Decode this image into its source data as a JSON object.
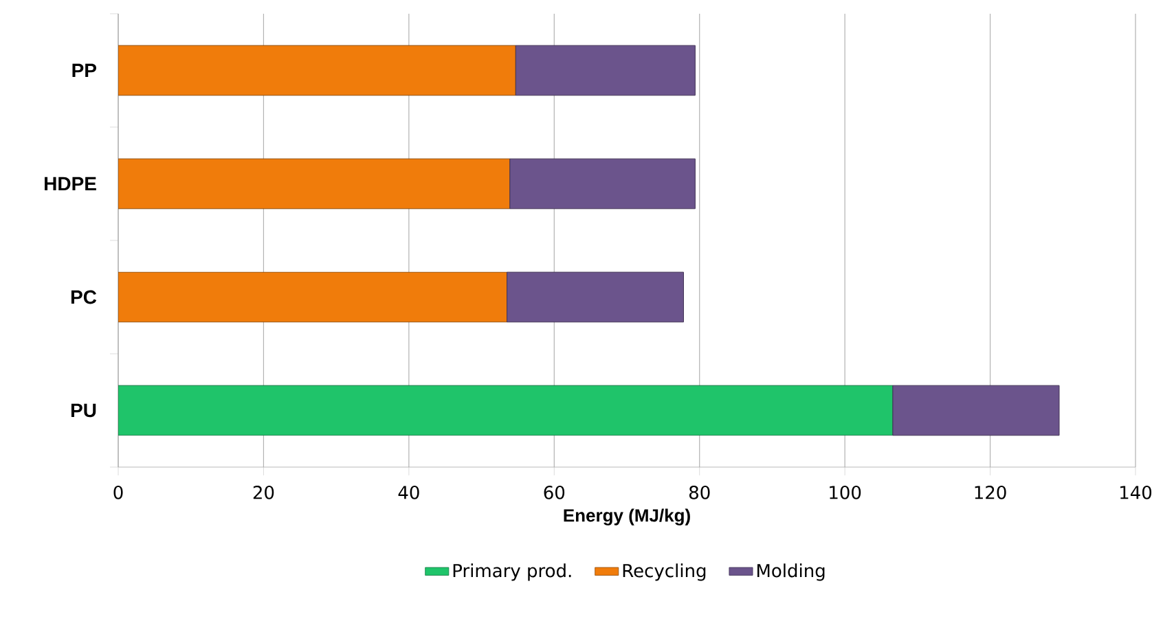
{
  "chart_data": {
    "type": "bar",
    "orientation": "horizontal",
    "stacked": true,
    "xlabel": "Energy (MJ/kg)",
    "categories": [
      "PP",
      "HDPE",
      "PC",
      "PU"
    ],
    "series": [
      {
        "name": "Primary prod.",
        "color": "#1fc46a",
        "values": [
          null,
          null,
          null,
          106.6
        ]
      },
      {
        "name": "Recycling",
        "color": "#f07c0b",
        "values": [
          54.7,
          53.9,
          53.5,
          null
        ]
      },
      {
        "name": "Molding",
        "color": "#6b548c",
        "values": [
          24.7,
          25.5,
          24.3,
          22.9
        ]
      }
    ],
    "xlim": [
      0,
      140
    ],
    "xticks": [
      0,
      20,
      40,
      60,
      80,
      100,
      120,
      140
    ],
    "grid": "x",
    "legend": "bottom"
  }
}
